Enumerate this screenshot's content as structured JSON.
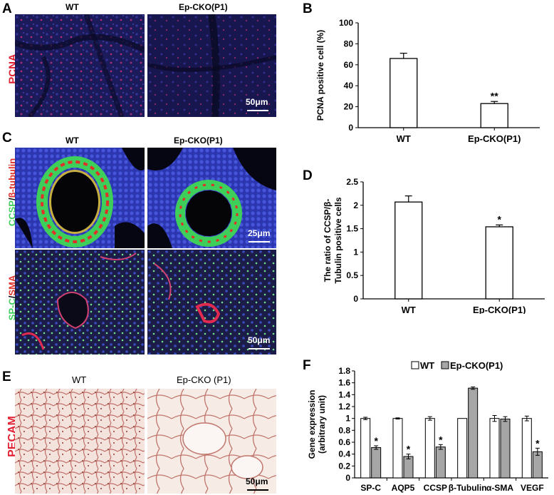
{
  "panels": {
    "A": {
      "letter": "A",
      "stain_label": "PCNA",
      "col_left": "WT",
      "col_right": "Ep-CKO(P1)",
      "scale_bar": "50μm"
    },
    "B": {
      "letter": "B"
    },
    "C": {
      "letter": "C",
      "col_left": "WT",
      "col_right": "Ep-CKO(P1)",
      "stain_top_a": "CCSP",
      "stain_top_sep": "/",
      "stain_top_b": "β-tubulin",
      "scale_top": "25μm",
      "stain_bot_a": "SP-C",
      "stain_bot_sep": "/",
      "stain_bot_b": "SMA",
      "scale_bot": "50μm"
    },
    "D": {
      "letter": "D"
    },
    "E": {
      "letter": "E",
      "stain_label": "PECAM",
      "col_left": "WT",
      "col_right": "Ep-CKO (P1)",
      "scale_bar": "50μm"
    },
    "F": {
      "letter": "F"
    }
  },
  "colors": {
    "pcna_bg": "#1a1a5e",
    "pcna_dot": "#c0307a",
    "ccsp_green": "#3ecf5a",
    "tubulin_red": "#e0302a",
    "dapi_blue": "#3544c8",
    "pecam_bg": "#f3e2dc",
    "pecam_stain": "#b65a50"
  },
  "chart_data": [
    {
      "type": "bar",
      "panel": "B",
      "categories": [
        "WT",
        "Ep-CKO(P1)"
      ],
      "values": [
        66,
        23
      ],
      "errors": [
        5,
        2
      ],
      "annotations": [
        "",
        "**"
      ],
      "ylabel": "PCNA positive cell (%)",
      "ylim": [
        0,
        100
      ],
      "yticks": [
        0,
        20,
        40,
        60,
        80,
        100
      ],
      "grid": false
    },
    {
      "type": "bar",
      "panel": "D",
      "categories": [
        "WT",
        "Ep-CKO(P1)"
      ],
      "values": [
        2.07,
        1.54
      ],
      "errors": [
        0.13,
        0.04
      ],
      "annotations": [
        "",
        "*"
      ],
      "ylabel_line1": "The ratio of CCSP/β-",
      "ylabel_line2": "Tubulin positive cells",
      "ylim": [
        0,
        2.5
      ],
      "yticks": [
        "0",
        "0.5",
        "1",
        "1.5",
        "2",
        "2.5"
      ],
      "grid": false
    },
    {
      "type": "bar",
      "panel": "F",
      "categories": [
        "SP-C",
        "AQP5",
        "CCSP",
        "β-Tubulin",
        "α-SMA",
        "VEGF"
      ],
      "series": [
        {
          "name": "WT",
          "values": [
            1.0,
            1.0,
            1.0,
            1.0,
            1.0,
            1.0
          ],
          "errors": [
            0.02,
            0.01,
            0.03,
            0.0,
            0.05,
            0.04
          ],
          "color": "#ffffff"
        },
        {
          "name": "Ep-CKO(P1)",
          "values": [
            0.51,
            0.36,
            0.52,
            1.51,
            0.99,
            0.44
          ],
          "errors": [
            0.03,
            0.04,
            0.04,
            0.02,
            0.04,
            0.06
          ],
          "color": "#a6a6a6"
        }
      ],
      "annotations": [
        "*",
        "*",
        "*",
        "",
        "",
        "*"
      ],
      "ylabel_line1": "Gene expression",
      "ylabel_line2": "(arbitrary unit)",
      "ylim": [
        0,
        1.8
      ],
      "yticks": [
        "0",
        "0.2",
        "0.4",
        "0.6",
        "0.8",
        "1",
        "1.2",
        "1.4",
        "1.6",
        "1.8"
      ],
      "legend_position": "top",
      "grid": false
    }
  ]
}
